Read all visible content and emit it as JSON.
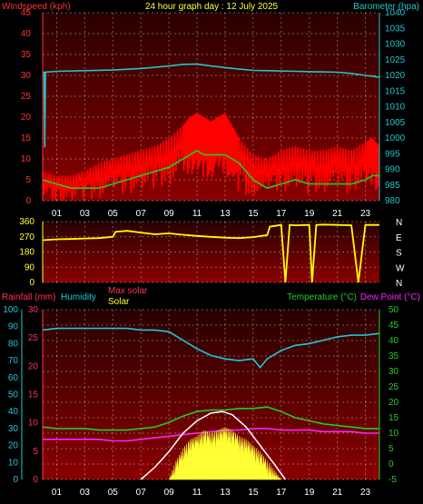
{
  "header": {
    "title": "24 hour graph day : 12 July 2025",
    "left_label": "Windspeed (kph)",
    "right_label": "Barometer (hpa)"
  },
  "colors": {
    "wind": "#ff0000",
    "gust": "#ff0000",
    "wind_avg": "#22cc22",
    "baro": "#22c4cc",
    "winddir": "#ffff00",
    "rain": "#ff3355",
    "humidity": "#1ec8d8",
    "temp": "#22cc22",
    "dew": "#ff22ff",
    "solar": "#ffff33",
    "maxsolar": "#ffffff",
    "axis_left": "#ff3333",
    "axis_right": "#22c4cc"
  },
  "chart_data": [
    {
      "type": "line",
      "name": "wind-barometer",
      "ylabel": "Windspeed (kph)",
      "y2label": "Barometer (hpa)",
      "ylim": [
        0,
        45
      ],
      "y2lim": [
        980,
        1040
      ],
      "yticks": [
        "0",
        "5",
        "10",
        "15",
        "20",
        "25",
        "30",
        "35",
        "40",
        "45"
      ],
      "y2ticks": [
        "980",
        "985",
        "990",
        "995",
        "1000",
        "1005",
        "1010",
        "1015",
        "1020",
        "1025",
        "1030",
        "1035",
        "1040"
      ],
      "xticks": [
        "01",
        "03",
        "05",
        "07",
        "09",
        "11",
        "13",
        "15",
        "17",
        "19",
        "21",
        "23"
      ],
      "xlim": [
        0,
        24
      ],
      "series": [
        {
          "key": "gust",
          "x": [
            0,
            1,
            2,
            3,
            4,
            5,
            6,
            7,
            8,
            9,
            10,
            10.5,
            11,
            11.5,
            12,
            12.5,
            13,
            13.5,
            14,
            15,
            16,
            17,
            18,
            19,
            20,
            21,
            22,
            23,
            23.5,
            24
          ],
          "values": [
            7,
            6,
            6,
            7,
            9,
            10,
            11,
            12,
            13,
            15,
            18,
            20,
            21,
            20,
            19,
            20,
            21,
            18,
            15,
            11,
            10,
            12,
            13,
            12,
            12,
            13,
            12,
            14,
            15,
            13
          ]
        },
        {
          "key": "wind",
          "x": [
            0,
            1,
            2,
            3,
            4,
            5,
            6,
            7,
            8,
            9,
            10,
            10.5,
            11,
            11.5,
            12,
            12.5,
            13,
            13.5,
            14,
            15,
            16,
            17,
            18,
            19,
            20,
            21,
            22,
            23,
            23.5,
            24
          ],
          "values": [
            5,
            3,
            3,
            4,
            5,
            6,
            8,
            8,
            9,
            11,
            13,
            15,
            17,
            16,
            15,
            16,
            16,
            14,
            12,
            8,
            6,
            7,
            9,
            8,
            7,
            7,
            8,
            9,
            11,
            10
          ]
        },
        {
          "key": "wind_avg",
          "x": [
            0,
            1,
            2,
            3,
            4,
            5,
            6,
            7,
            8,
            9,
            10,
            10.5,
            11,
            11.5,
            12,
            12.5,
            13,
            13.5,
            14,
            15,
            16,
            17,
            18,
            19,
            20,
            21,
            22,
            23,
            23.5,
            24
          ],
          "values": [
            5,
            4,
            3,
            3,
            3,
            4,
            5,
            6,
            7,
            8,
            10,
            11,
            12,
            11,
            11,
            11,
            11,
            10,
            9,
            5,
            3,
            4,
            5,
            4,
            4,
            4,
            4,
            5,
            6,
            6
          ]
        },
        {
          "key": "baro",
          "axis": "y2",
          "x": [
            0,
            0.1,
            0.15,
            0.2,
            1,
            3,
            5,
            7,
            9,
            10,
            11,
            12,
            13,
            14,
            15,
            16,
            17,
            18,
            19,
            20,
            21,
            22,
            23,
            24
          ],
          "values": [
            1021,
            1021,
            997,
            1021,
            1021.3,
            1021.5,
            1021.7,
            1022.2,
            1023,
            1023.5,
            1023.6,
            1023,
            1022.5,
            1022,
            1021.6,
            1021.5,
            1021.4,
            1021.3,
            1021.2,
            1021.1,
            1021,
            1020.6,
            1020,
            1019.4
          ]
        }
      ]
    },
    {
      "type": "line",
      "name": "wind-direction",
      "ylim": [
        0,
        360
      ],
      "yticks": [
        "0",
        "90",
        "180",
        "270",
        "360"
      ],
      "compass": [
        "N",
        "W",
        "S",
        "E",
        "N"
      ],
      "xlim": [
        0,
        24
      ],
      "series": [
        {
          "key": "winddir",
          "x": [
            0,
            1,
            2,
            3,
            4,
            5,
            5.2,
            6,
            7,
            8,
            9,
            10,
            11,
            12,
            13,
            14,
            15,
            16,
            16.2,
            17,
            17.3,
            17.6,
            18,
            19,
            19.2,
            19.5,
            20,
            21,
            22,
            22.5,
            23,
            24
          ],
          "values": [
            250,
            255,
            257,
            260,
            262,
            270,
            300,
            305,
            295,
            285,
            290,
            282,
            275,
            270,
            265,
            262,
            268,
            280,
            330,
            340,
            0,
            340,
            338,
            340,
            0,
            340,
            342,
            340,
            338,
            0,
            340,
            340
          ]
        }
      ]
    },
    {
      "type": "line",
      "name": "temp-humidity-solar",
      "legend": [
        "Rainfall (mm)",
        "Humidity",
        "Max solar",
        "Solar",
        "Temperature (°C)",
        "Dew Point (°C)"
      ],
      "ylim": [
        0,
        30
      ],
      "yticks_rain": [
        "0",
        "5",
        "10",
        "15",
        "20",
        "25",
        "30"
      ],
      "yticks_hum": [
        "0",
        "10",
        "20",
        "30",
        "40",
        "50",
        "60",
        "70",
        "80",
        "90",
        "100"
      ],
      "y2lim": [
        -5,
        50
      ],
      "y2ticks": [
        "-5",
        "0",
        "5",
        "10",
        "15",
        "20",
        "25",
        "30",
        "35",
        "40",
        "45",
        "50"
      ],
      "xticks": [
        "01",
        "03",
        "05",
        "07",
        "09",
        "11",
        "13",
        "15",
        "17",
        "19",
        "21",
        "23"
      ],
      "xlim": [
        0,
        24
      ],
      "series": [
        {
          "key": "humidity",
          "x": [
            0,
            1,
            2,
            3,
            4,
            5,
            6,
            7,
            8,
            9,
            10,
            11,
            12,
            13,
            14,
            15,
            15.5,
            16,
            17,
            18,
            19,
            20,
            21,
            22,
            23,
            24
          ],
          "values": [
            88,
            89,
            89,
            89,
            89,
            89,
            89,
            88,
            88,
            87,
            82,
            77,
            73,
            71,
            70,
            71,
            66,
            71,
            76,
            79,
            80,
            82,
            84,
            85,
            85,
            86
          ]
        },
        {
          "key": "temp",
          "axis": "y2",
          "x": [
            0,
            1,
            2,
            3,
            4,
            5,
            6,
            7,
            8,
            9,
            10,
            11,
            12,
            13,
            14,
            15,
            16,
            17,
            18,
            19,
            20,
            21,
            22,
            23,
            24
          ],
          "values": [
            12,
            11.5,
            11.5,
            11.5,
            11,
            11,
            11,
            11.5,
            12,
            13.5,
            15.5,
            17,
            17.5,
            17.5,
            18,
            18,
            18.5,
            17,
            15,
            14,
            13,
            12.5,
            12,
            11.5,
            11.5
          ]
        },
        {
          "key": "dew",
          "axis": "y2",
          "x": [
            0,
            1,
            2,
            3,
            4,
            5,
            6,
            7,
            8,
            9,
            10,
            11,
            12,
            13,
            14,
            15,
            16,
            17,
            18,
            19,
            20,
            21,
            22,
            23,
            24
          ],
          "values": [
            8,
            8,
            8,
            8,
            8,
            7.5,
            7.5,
            8,
            8.5,
            9,
            9.5,
            10,
            10.5,
            11,
            11,
            11.5,
            11.5,
            11,
            11,
            11,
            10.5,
            10.5,
            10.5,
            10,
            10
          ]
        },
        {
          "key": "maxsolar",
          "axis": "y2",
          "x": [
            7,
            8,
            9,
            10,
            11,
            12,
            12.8,
            13.5,
            14.5,
            15.5,
            16.5,
            17.3
          ],
          "values": [
            -5,
            -1,
            4,
            10,
            14,
            16.5,
            17,
            16,
            12,
            6,
            0,
            -5
          ]
        },
        {
          "key": "solar",
          "axis": "y2",
          "x": [
            9,
            9.5,
            10,
            10.5,
            11,
            11.5,
            12,
            12.5,
            13,
            13.5,
            14,
            14.5,
            15,
            15.5,
            16,
            16.5,
            17
          ],
          "values": [
            -5,
            1,
            5,
            8,
            9,
            11,
            10,
            11,
            12,
            11,
            9,
            8,
            6,
            4,
            1,
            -2,
            -5
          ]
        }
      ]
    }
  ]
}
